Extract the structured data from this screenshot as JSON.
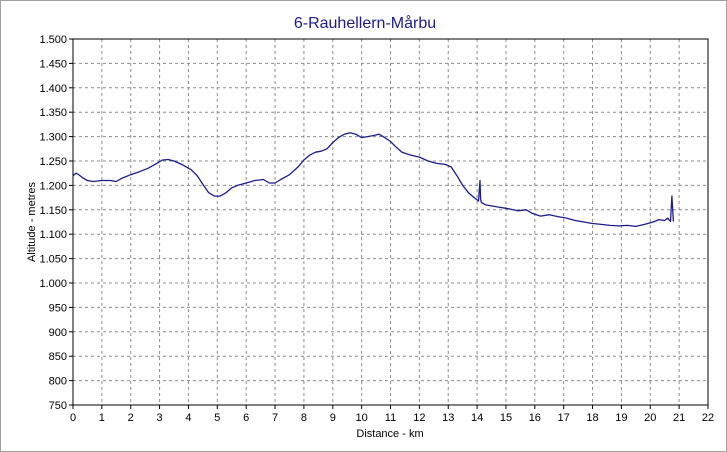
{
  "chart_data": {
    "type": "line",
    "title": "6-Rauhellern-Mårbu",
    "xlabel": "Distance - km",
    "ylabel": "Altitude - metres",
    "xlim": [
      0,
      22
    ],
    "ylim": [
      750,
      1500
    ],
    "x_ticks": [
      "0",
      "1",
      "2",
      "3",
      "4",
      "5",
      "6",
      "7",
      "8",
      "9",
      "10",
      "11",
      "12",
      "13",
      "14",
      "15",
      "16",
      "17",
      "18",
      "19",
      "20",
      "21",
      "22"
    ],
    "y_ticks": [
      "750",
      "800",
      "850",
      "900",
      "950",
      "1.000",
      "1.050",
      "1.100",
      "1.150",
      "1.200",
      "1.250",
      "1.300",
      "1.350",
      "1.400",
      "1.450",
      "1.500"
    ],
    "grid": true,
    "line_color": "#1c1c8c",
    "series": [
      {
        "x": [
          0,
          0.1,
          0.2,
          0.35,
          0.5,
          0.7,
          1.0,
          1.3,
          1.5,
          1.7,
          2.0,
          2.3,
          2.6,
          2.9,
          3.1,
          3.3,
          3.5,
          3.8,
          4.1,
          4.3,
          4.5,
          4.7,
          4.9,
          5.1,
          5.3,
          5.5,
          5.7,
          6.0,
          6.3,
          6.6,
          6.8,
          7.0,
          7.2,
          7.5,
          7.8,
          8.0,
          8.2,
          8.4,
          8.6,
          8.8,
          9.0,
          9.2,
          9.4,
          9.6,
          9.8,
          10.0,
          10.2,
          10.4,
          10.6,
          10.8,
          11.0,
          11.2,
          11.4,
          11.7,
          12.0,
          12.3,
          12.6,
          12.9,
          13.1,
          13.3,
          13.5,
          13.7,
          13.9,
          14.05,
          14.1,
          14.12,
          14.15,
          14.3,
          14.5,
          14.8,
          15.1,
          15.4,
          15.7,
          15.9,
          16.2,
          16.5,
          16.8,
          17.1,
          17.4,
          17.7,
          18.0,
          18.3,
          18.6,
          18.9,
          19.2,
          19.5,
          19.8,
          20.1,
          20.3,
          20.5,
          20.6,
          20.7,
          20.75,
          20.8
        ],
        "y": [
          1220,
          1225,
          1222,
          1215,
          1210,
          1208,
          1210,
          1210,
          1208,
          1215,
          1222,
          1228,
          1235,
          1245,
          1252,
          1253,
          1250,
          1242,
          1232,
          1220,
          1202,
          1185,
          1178,
          1178,
          1185,
          1195,
          1200,
          1205,
          1210,
          1212,
          1205,
          1205,
          1212,
          1222,
          1238,
          1252,
          1262,
          1268,
          1270,
          1275,
          1288,
          1298,
          1305,
          1308,
          1305,
          1298,
          1300,
          1302,
          1305,
          1298,
          1290,
          1278,
          1268,
          1262,
          1258,
          1250,
          1245,
          1243,
          1238,
          1220,
          1200,
          1185,
          1175,
          1168,
          1210,
          1172,
          1165,
          1160,
          1158,
          1155,
          1152,
          1148,
          1150,
          1143,
          1137,
          1140,
          1136,
          1133,
          1128,
          1125,
          1122,
          1120,
          1118,
          1117,
          1118,
          1116,
          1120,
          1125,
          1130,
          1128,
          1133,
          1126,
          1178,
          1126
        ]
      }
    ]
  }
}
